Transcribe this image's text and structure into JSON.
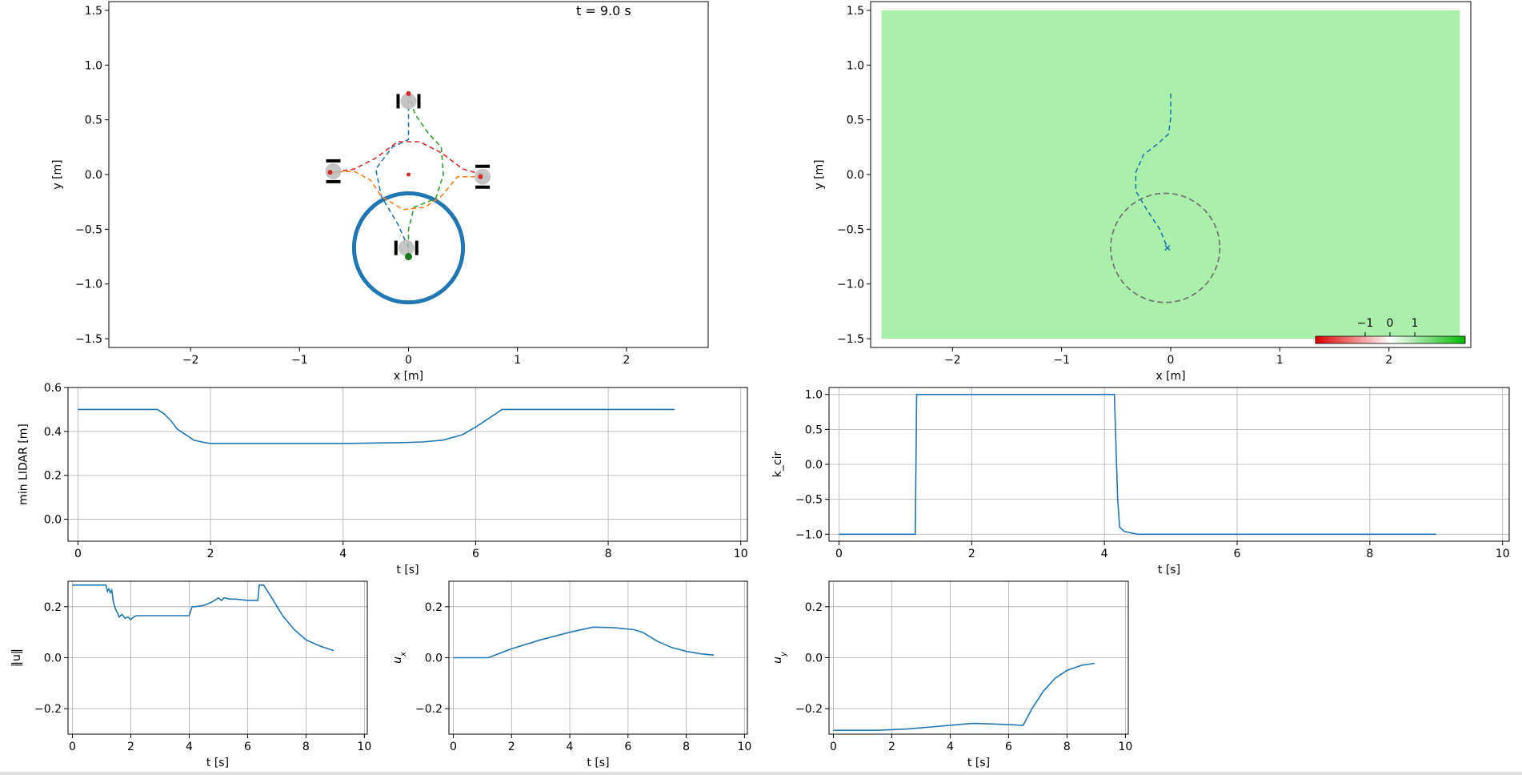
{
  "chart_data": [
    {
      "id": "scene-left",
      "type": "line",
      "annotation": "t = 9.0 s",
      "xlabel": "x [m]",
      "ylabel": "y [m]",
      "xlim": [
        -2.75,
        2.75
      ],
      "ylim": [
        -1.58,
        1.58
      ],
      "xticks": [
        -2,
        -1,
        0,
        1,
        2
      ],
      "yticks": [
        -1.5,
        -1.0,
        -0.5,
        0.0,
        0.5,
        1.0,
        1.5
      ],
      "grid": false,
      "obstacle_circle": {
        "center": [
          0,
          -0.67
        ],
        "radius": 0.5,
        "color": "#1f77b4"
      },
      "center_point": [
        0,
        0
      ],
      "trajectories": [
        {
          "color": "#1f77b4",
          "points": [
            [
              0,
              -0.67
            ],
            [
              -0.1,
              -0.45
            ],
            [
              -0.25,
              -0.2
            ],
            [
              -0.3,
              0.05
            ],
            [
              -0.15,
              0.25
            ],
            [
              0,
              0.32
            ],
            [
              0,
              0.5
            ],
            [
              0,
              0.68
            ]
          ]
        },
        {
          "color": "#2ca02c",
          "points": [
            [
              0,
              0.74
            ],
            [
              0.06,
              0.55
            ],
            [
              0.18,
              0.38
            ],
            [
              0.3,
              0.25
            ],
            [
              0.32,
              0.0
            ],
            [
              0.25,
              -0.22
            ],
            [
              0.05,
              -0.3
            ],
            [
              0,
              -0.5
            ],
            [
              0,
              -0.73
            ]
          ]
        },
        {
          "color": "#d62728",
          "points": [
            [
              0.68,
              0
            ],
            [
              0.5,
              0.05
            ],
            [
              0.3,
              0.2
            ],
            [
              0.1,
              0.3
            ],
            [
              -0.1,
              0.3
            ],
            [
              -0.3,
              0.15
            ],
            [
              -0.5,
              0.05
            ],
            [
              -0.7,
              0.02
            ]
          ]
        },
        {
          "color": "#ff7f0e",
          "points": [
            [
              -0.72,
              0.02
            ],
            [
              -0.5,
              0.03
            ],
            [
              -0.35,
              -0.05
            ],
            [
              -0.25,
              -0.2
            ],
            [
              -0.05,
              -0.32
            ],
            [
              0.15,
              -0.3
            ],
            [
              0.3,
              -0.2
            ],
            [
              0.45,
              -0.02
            ],
            [
              0.66,
              -0.02
            ]
          ]
        }
      ],
      "robots": [
        {
          "position": [
            0,
            0.67
          ],
          "heading": 90
        },
        {
          "position": [
            0.68,
            -0.02
          ],
          "heading": 0
        },
        {
          "position": [
            -0.69,
            0.03
          ],
          "heading": 180
        },
        {
          "position": [
            -0.02,
            -0.67
          ],
          "heading": 270
        }
      ],
      "goals": [
        [
          0,
          -0.75
        ],
        [
          0,
          0.74
        ],
        [
          -0.72,
          0.02
        ],
        [
          0.66,
          -0.02
        ]
      ]
    },
    {
      "id": "scene-right",
      "type": "line",
      "xlabel": "x [m]",
      "ylabel": "y [m]",
      "xlim": [
        -2.75,
        2.75
      ],
      "ylim": [
        -1.58,
        1.58
      ],
      "xticks": [
        -2,
        -1,
        0,
        1,
        2
      ],
      "yticks": [
        -1.5,
        -1.0,
        -0.5,
        0.0,
        0.5,
        1.0,
        1.5
      ],
      "field_color": "#aaf0aa",
      "field_extent": [
        -2.65,
        2.65,
        -1.5,
        1.5
      ],
      "circle": {
        "center": [
          -0.05,
          -0.67
        ],
        "radius": 0.5,
        "color": "#777777"
      },
      "trajectory": {
        "color": "#1f77b4",
        "points": [
          [
            0,
            0.74
          ],
          [
            0,
            0.52
          ],
          [
            -0.02,
            0.37
          ],
          [
            -0.12,
            0.28
          ],
          [
            -0.25,
            0.18
          ],
          [
            -0.32,
            0.02
          ],
          [
            -0.32,
            -0.15
          ],
          [
            -0.22,
            -0.32
          ],
          [
            -0.1,
            -0.5
          ],
          [
            -0.03,
            -0.67
          ]
        ]
      },
      "marker": [
        -0.03,
        -0.67
      ],
      "colorbar": {
        "ticks": [
          "−1",
          "0",
          "1"
        ],
        "min_color": "#dd0000",
        "mid_color": "#ffffff",
        "max_color": "#00bb00"
      }
    },
    {
      "id": "min-lidar",
      "type": "line",
      "xlabel": "t [s]",
      "ylabel": "min LIDAR [m]",
      "xlim": [
        -0.15,
        10.1
      ],
      "ylim": [
        -0.1,
        0.6
      ],
      "xticks": [
        0,
        2,
        4,
        6,
        8,
        10
      ],
      "yticks": [
        0.0,
        0.2,
        0.4,
        0.6
      ],
      "grid": true,
      "x": [
        0,
        1.2,
        1.3,
        1.4,
        1.5,
        1.6,
        1.75,
        1.9,
        2.0,
        2.2,
        3,
        4,
        5,
        5.2,
        5.5,
        5.8,
        6.0,
        6.2,
        6.4,
        7,
        8,
        9
      ],
      "y": [
        0.5,
        0.5,
        0.48,
        0.45,
        0.41,
        0.39,
        0.36,
        0.35,
        0.345,
        0.345,
        0.345,
        0.345,
        0.35,
        0.352,
        0.36,
        0.385,
        0.42,
        0.46,
        0.5,
        0.5,
        0.5,
        0.5
      ]
    },
    {
      "id": "k-cir",
      "type": "line",
      "xlabel": "t [s]",
      "ylabel": "k_cir",
      "xlim": [
        -0.15,
        10.1
      ],
      "ylim": [
        -1.1,
        1.1
      ],
      "xticks": [
        0,
        2,
        4,
        6,
        8,
        10
      ],
      "yticks": [
        -1.0,
        -0.5,
        0.0,
        0.5,
        1.0
      ],
      "grid": true,
      "x": [
        0,
        1.15,
        1.17,
        4.15,
        4.2,
        4.23,
        4.3,
        4.5,
        5,
        9
      ],
      "y": [
        -1.0,
        -1.0,
        1.0,
        1.0,
        -0.5,
        -0.9,
        -0.96,
        -1.0,
        -1.0,
        -1.0
      ]
    },
    {
      "id": "u-norm",
      "type": "line",
      "xlabel": "t [s]",
      "ylabel": "‖u‖",
      "xlim": [
        -0.15,
        10.1
      ],
      "ylim": [
        -0.3,
        0.3
      ],
      "xticks": [
        0,
        2,
        4,
        6,
        8,
        10
      ],
      "yticks": [
        -0.2,
        0.0,
        0.2
      ],
      "grid": true,
      "x": [
        0,
        1.15,
        1.2,
        1.25,
        1.3,
        1.35,
        1.4,
        1.45,
        1.5,
        1.55,
        1.6,
        1.7,
        1.8,
        1.9,
        2.0,
        2.1,
        2.2,
        3.0,
        4.0,
        4.1,
        4.2,
        4.5,
        4.7,
        4.8,
        5.0,
        5.1,
        5.2,
        5.4,
        5.6,
        6.0,
        6.35,
        6.4,
        6.55,
        6.8,
        7.2,
        7.6,
        8.0,
        8.5,
        8.95
      ],
      "y": [
        0.285,
        0.285,
        0.26,
        0.27,
        0.255,
        0.265,
        0.22,
        0.2,
        0.185,
        0.175,
        0.16,
        0.17,
        0.155,
        0.16,
        0.15,
        0.16,
        0.165,
        0.165,
        0.165,
        0.2,
        0.2,
        0.205,
        0.215,
        0.22,
        0.235,
        0.225,
        0.235,
        0.23,
        0.23,
        0.225,
        0.225,
        0.285,
        0.285,
        0.24,
        0.165,
        0.11,
        0.07,
        0.045,
        0.028
      ]
    },
    {
      "id": "u-x",
      "type": "line",
      "xlabel": "t [s]",
      "ylabel": "u_x",
      "xlim": [
        -0.15,
        10.1
      ],
      "ylim": [
        -0.3,
        0.3
      ],
      "xticks": [
        0,
        2,
        4,
        6,
        8,
        10
      ],
      "yticks": [
        -0.2,
        0.0,
        0.2
      ],
      "grid": true,
      "x": [
        0,
        1.2,
        2,
        3,
        4,
        4.8,
        5.5,
        6.2,
        6.5,
        7,
        7.5,
        8,
        8.5,
        8.95
      ],
      "y": [
        0,
        0,
        0.035,
        0.07,
        0.1,
        0.12,
        0.118,
        0.11,
        0.1,
        0.065,
        0.04,
        0.025,
        0.015,
        0.01
      ]
    },
    {
      "id": "u-y",
      "type": "line",
      "xlabel": "t [s]",
      "ylabel": "u_y",
      "xlim": [
        -0.15,
        10.1
      ],
      "ylim": [
        -0.3,
        0.3
      ],
      "xticks": [
        0,
        2,
        4,
        6,
        8,
        10
      ],
      "yticks": [
        -0.2,
        0.0,
        0.2
      ],
      "grid": true,
      "x": [
        0,
        1.5,
        2.5,
        3.5,
        4.5,
        4.8,
        5.5,
        6.5,
        6.8,
        7.2,
        7.6,
        8.0,
        8.5,
        8.95
      ],
      "y": [
        -0.285,
        -0.285,
        -0.28,
        -0.27,
        -0.26,
        -0.258,
        -0.26,
        -0.265,
        -0.2,
        -0.13,
        -0.08,
        -0.05,
        -0.03,
        -0.022
      ]
    }
  ]
}
